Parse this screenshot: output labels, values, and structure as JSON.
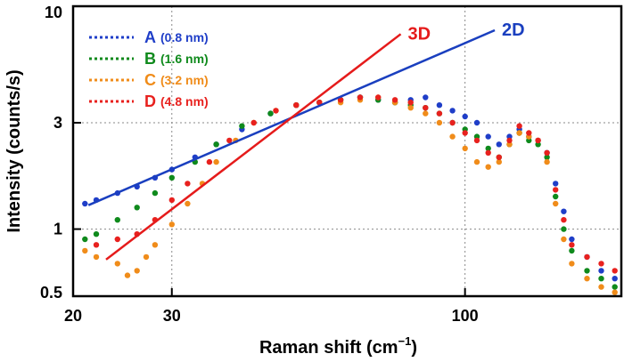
{
  "chart_data": {
    "type": "scatter",
    "xlabel": "Raman shift (cm",
    "xlabel_sup": "−1",
    "xlabel_close": ")",
    "ylabel": "Intensity (counts/s)",
    "x_scale": "log",
    "y_scale": "log",
    "xlim": [
      20,
      190
    ],
    "ylim": [
      0.5,
      10
    ],
    "x_ticks": [
      {
        "value": 20,
        "label": "20"
      },
      {
        "value": 30,
        "label": "30"
      },
      {
        "value": 100,
        "label": "100"
      }
    ],
    "y_ticks": [
      {
        "value": 0.5,
        "label": "0.5"
      },
      {
        "value": 1,
        "label": "1"
      },
      {
        "value": 3,
        "label": "3"
      },
      {
        "value": 10,
        "label": "10"
      }
    ],
    "grid": "dotted at x=30,100 and y=1,3",
    "legend_position": "top-left",
    "series": [
      {
        "letter": "A",
        "size_label": "(0.8 nm)",
        "color": "#1f3ec8",
        "points": [
          [
            21,
            1.3
          ],
          [
            22,
            1.35
          ],
          [
            24,
            1.45
          ],
          [
            26,
            1.55
          ],
          [
            28,
            1.7
          ],
          [
            30,
            1.85
          ],
          [
            33,
            2.1
          ],
          [
            36,
            2.4
          ],
          [
            40,
            2.8
          ],
          [
            45,
            3.3
          ],
          [
            50,
            3.6
          ],
          [
            55,
            3.7
          ],
          [
            60,
            3.8
          ],
          [
            65,
            3.9
          ],
          [
            70,
            3.8
          ],
          [
            75,
            3.7
          ],
          [
            80,
            3.8
          ],
          [
            85,
            3.9
          ],
          [
            90,
            3.6
          ],
          [
            95,
            3.4
          ],
          [
            100,
            3.2
          ],
          [
            105,
            3.0
          ],
          [
            110,
            2.6
          ],
          [
            115,
            2.4
          ],
          [
            120,
            2.6
          ],
          [
            125,
            2.8
          ],
          [
            130,
            2.6
          ],
          [
            135,
            2.5
          ],
          [
            140,
            2.2
          ],
          [
            145,
            1.6
          ],
          [
            150,
            1.2
          ],
          [
            155,
            0.9
          ],
          [
            165,
            0.75
          ],
          [
            175,
            0.65
          ],
          [
            185,
            0.6
          ]
        ]
      },
      {
        "letter": "B",
        "size_label": "(1.6 nm)",
        "color": "#0f8a1c",
        "points": [
          [
            21,
            0.9
          ],
          [
            22,
            0.95
          ],
          [
            24,
            1.1
          ],
          [
            26,
            1.25
          ],
          [
            28,
            1.45
          ],
          [
            30,
            1.7
          ],
          [
            33,
            2.0
          ],
          [
            36,
            2.4
          ],
          [
            40,
            2.9
          ],
          [
            45,
            3.3
          ],
          [
            50,
            3.6
          ],
          [
            55,
            3.7
          ],
          [
            60,
            3.8
          ],
          [
            65,
            3.9
          ],
          [
            70,
            3.8
          ],
          [
            75,
            3.7
          ],
          [
            80,
            3.6
          ],
          [
            85,
            3.5
          ],
          [
            90,
            3.3
          ],
          [
            95,
            3.0
          ],
          [
            100,
            2.8
          ],
          [
            105,
            2.6
          ],
          [
            110,
            2.3
          ],
          [
            115,
            2.1
          ],
          [
            120,
            2.4
          ],
          [
            125,
            2.7
          ],
          [
            130,
            2.5
          ],
          [
            135,
            2.4
          ],
          [
            140,
            2.1
          ],
          [
            145,
            1.4
          ],
          [
            150,
            1.0
          ],
          [
            155,
            0.8
          ],
          [
            165,
            0.65
          ],
          [
            175,
            0.6
          ],
          [
            185,
            0.55
          ]
        ]
      },
      {
        "letter": "C",
        "size_label": "(3.2 nm)",
        "color": "#f08c1a",
        "points": [
          [
            21,
            0.8
          ],
          [
            22,
            0.75
          ],
          [
            24,
            0.7
          ],
          [
            25,
            0.62
          ],
          [
            26,
            0.65
          ],
          [
            27,
            0.75
          ],
          [
            28,
            0.85
          ],
          [
            30,
            1.05
          ],
          [
            32,
            1.3
          ],
          [
            34,
            1.6
          ],
          [
            36,
            2.0
          ],
          [
            39,
            2.5
          ],
          [
            42,
            3.0
          ],
          [
            46,
            3.4
          ],
          [
            50,
            3.6
          ],
          [
            55,
            3.7
          ],
          [
            60,
            3.7
          ],
          [
            65,
            3.8
          ],
          [
            70,
            3.9
          ],
          [
            75,
            3.7
          ],
          [
            80,
            3.5
          ],
          [
            85,
            3.3
          ],
          [
            90,
            3.0
          ],
          [
            95,
            2.6
          ],
          [
            100,
            2.3
          ],
          [
            105,
            2.0
          ],
          [
            110,
            1.9
          ],
          [
            115,
            2.0
          ],
          [
            120,
            2.4
          ],
          [
            125,
            2.7
          ],
          [
            130,
            2.6
          ],
          [
            135,
            2.5
          ],
          [
            140,
            2.0
          ],
          [
            145,
            1.3
          ],
          [
            150,
            0.9
          ],
          [
            155,
            0.7
          ],
          [
            165,
            0.6
          ],
          [
            175,
            0.55
          ],
          [
            185,
            0.52
          ]
        ]
      },
      {
        "letter": "D",
        "size_label": "(4.8 nm)",
        "color": "#e8211e",
        "points": [
          [
            22,
            0.85
          ],
          [
            24,
            0.9
          ],
          [
            26,
            0.95
          ],
          [
            28,
            1.1
          ],
          [
            30,
            1.35
          ],
          [
            32,
            1.6
          ],
          [
            35,
            2.0
          ],
          [
            38,
            2.5
          ],
          [
            42,
            3.0
          ],
          [
            46,
            3.4
          ],
          [
            50,
            3.6
          ],
          [
            55,
            3.7
          ],
          [
            60,
            3.8
          ],
          [
            65,
            3.9
          ],
          [
            70,
            3.9
          ],
          [
            75,
            3.8
          ],
          [
            80,
            3.7
          ],
          [
            85,
            3.5
          ],
          [
            90,
            3.3
          ],
          [
            95,
            3.0
          ],
          [
            100,
            2.7
          ],
          [
            105,
            2.5
          ],
          [
            110,
            2.2
          ],
          [
            115,
            2.1
          ],
          [
            120,
            2.5
          ],
          [
            125,
            2.9
          ],
          [
            130,
            2.7
          ],
          [
            135,
            2.5
          ],
          [
            140,
            2.2
          ],
          [
            145,
            1.5
          ],
          [
            150,
            1.1
          ],
          [
            155,
            0.85
          ],
          [
            165,
            0.75
          ],
          [
            175,
            0.7
          ],
          [
            185,
            0.65
          ]
        ]
      }
    ],
    "fit_lines": [
      {
        "label": "2D",
        "color": "#1a3fbf",
        "from": [
          21.3,
          1.28
        ],
        "to": [
          113,
          7.8
        ]
      },
      {
        "label": "3D",
        "color": "#e51b1b",
        "from": [
          22.9,
          0.73
        ],
        "to": [
          76.8,
          7.5
        ]
      }
    ]
  }
}
